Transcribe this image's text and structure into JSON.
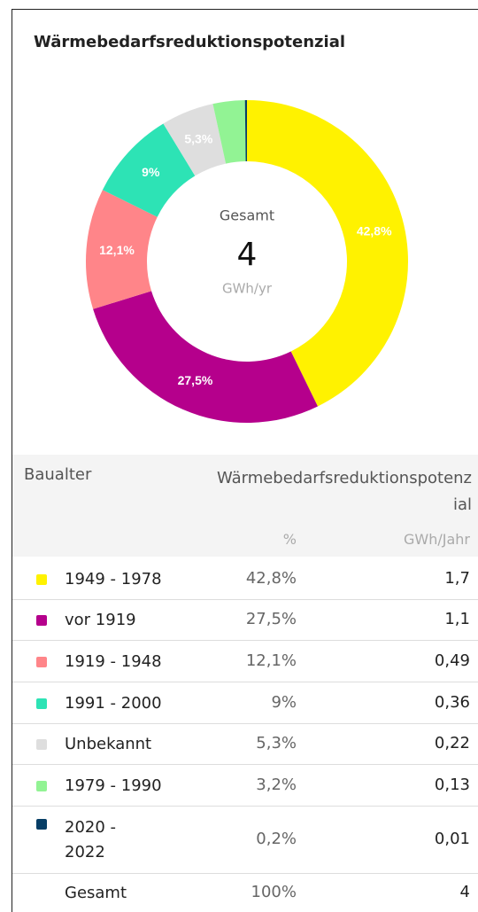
{
  "chart_data": {
    "type": "pie",
    "title": "Wärmebedarfsreduktionspotenzial",
    "center_label": "Gesamt",
    "center_value": "4",
    "center_unit": "GWh/yr",
    "categories": [
      "1949 - 1978",
      "vor 1919",
      "1919 - 1948",
      "1991 - 2000",
      "Unbekannt",
      "1979 - 1990",
      "2020 - 2022"
    ],
    "values": [
      42.8,
      27.5,
      12.1,
      9,
      5.3,
      3.2,
      0.2
    ],
    "value_labels": [
      "42,8%",
      "27,5%",
      "12,1%",
      "9%",
      "5,3%",
      null,
      null
    ],
    "colors": [
      "#fff200",
      "#b5008c",
      "#ff8589",
      "#2de3b5",
      "#dedede",
      "#92f394",
      "#073e66"
    ]
  },
  "table": {
    "header": [
      "Baualter",
      "Wärmebedarfsreduktionspotenzial"
    ],
    "subheader": [
      "%",
      "GWh/Jahr"
    ],
    "rows": [
      [
        "1949 - 1978",
        "42,8%",
        "1,7"
      ],
      [
        "vor 1919",
        "27,5%",
        "1,1"
      ],
      [
        "1919 - 1948",
        "12,1%",
        "0,49"
      ],
      [
        "1991 - 2000",
        "9%",
        "0,36"
      ],
      [
        "Unbekannt",
        "5,3%",
        "0,22"
      ],
      [
        "1979 - 1990",
        "3,2%",
        "0,13"
      ],
      [
        "2020 - 2022",
        "0,2%",
        "0,01"
      ],
      [
        "Gesamt",
        "100%",
        "4"
      ]
    ]
  }
}
